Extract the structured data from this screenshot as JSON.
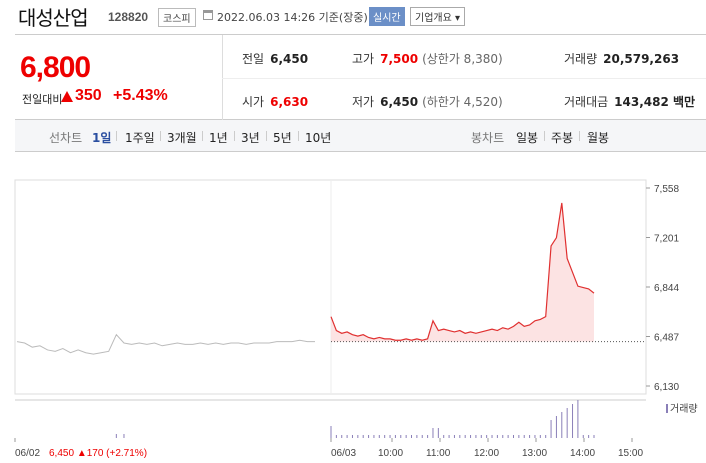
{
  "header": {
    "name": "대성산업",
    "code": "128820",
    "market": "코스피",
    "date": "2022.06.03 14:26 기준(장중)",
    "realtime": "실시간",
    "company_info": "기업개요 ▾"
  },
  "quote": {
    "price": "6,800",
    "change_label": "전일대비",
    "change": "350",
    "change_pct": "+5.43%",
    "prev_label": "전일",
    "prev": "6,450",
    "high_label": "고가",
    "high": "7,500",
    "upper_limit": "(상한가 8,380)",
    "volume_label": "거래량",
    "volume": "20,579,263",
    "open_label": "시가",
    "open": "6,630",
    "low_label": "저가",
    "low": "6,450",
    "lower_limit": "(하한가 4,520)",
    "amount_label": "거래대금",
    "amount": "143,482 백만"
  },
  "tabs": {
    "line_label": "선차트",
    "line": [
      "1일",
      "1주일",
      "3개월",
      "1년",
      "3년",
      "5년",
      "10년"
    ],
    "candle_label": "봉차트",
    "candle": [
      "일봉",
      "주봉",
      "월봉"
    ]
  },
  "chart_data": {
    "type": "line",
    "y_ticks": [
      "7,558",
      "7,201",
      "6,844",
      "6,487",
      "6,130"
    ],
    "ylim": [
      6130,
      7558
    ],
    "x_ticks": [
      "06/02",
      "06/03",
      "10:00",
      "11:00",
      "12:00",
      "13:00",
      "14:00",
      "15:00"
    ],
    "volume_label": "거래량",
    "prev_day_footer": {
      "date": "06/02",
      "price": "6,450",
      "change": "▲170 (+2.71%)"
    },
    "series": [
      {
        "values_prev_day": [
          6450,
          6440,
          6410,
          6420,
          6390,
          6380,
          6400,
          6370,
          6390,
          6370,
          6360,
          6370,
          6380,
          6500,
          6440,
          6430,
          6440,
          6430,
          6440,
          6420,
          6430,
          6440,
          6430,
          6430,
          6440,
          6430,
          6440,
          6430,
          6440,
          6440,
          6430,
          6440,
          6440,
          6440,
          6450,
          6450,
          6450,
          6460,
          6450,
          6450
        ],
        "values_today": [
          6630,
          6530,
          6510,
          6520,
          6500,
          6490,
          6500,
          6480,
          6470,
          6480,
          6470,
          6470,
          6460,
          6460,
          6470,
          6460,
          6470,
          6460,
          6470,
          6600,
          6530,
          6540,
          6530,
          6520,
          6530,
          6510,
          6520,
          6510,
          6520,
          6530,
          6540,
          6530,
          6550,
          6540,
          6560,
          6590,
          6560,
          6570,
          6600,
          6610,
          6630,
          7140,
          7200,
          7450,
          7050,
          6950,
          6850,
          6840,
          6830,
          6800
        ],
        "prev_close": 6450
      }
    ]
  }
}
